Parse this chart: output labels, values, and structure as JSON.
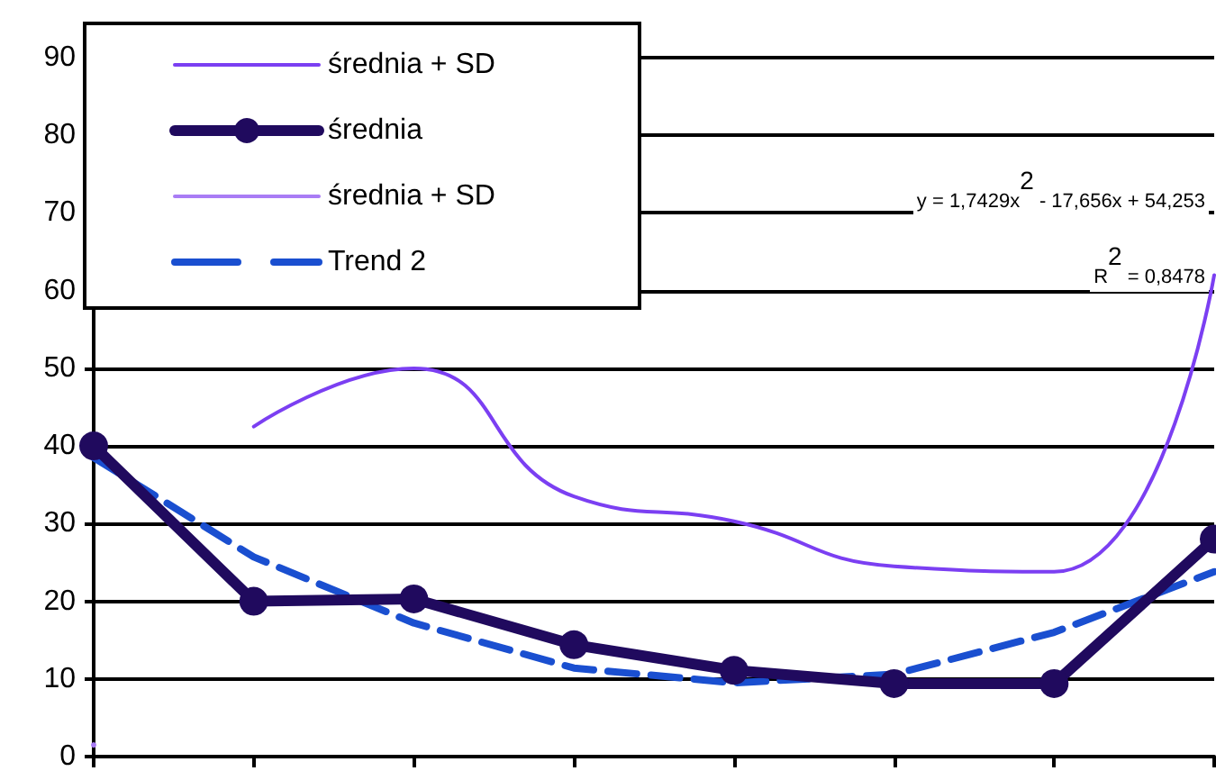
{
  "chart_data": {
    "type": "line",
    "categories": [
      null,
      null,
      null,
      null,
      null,
      null,
      null,
      null
    ],
    "series": [
      {
        "name": "średnia + SD",
        "color": "#7b3ff2",
        "values": [
          null,
          42.5,
          50,
          33.5,
          30.3,
          24.5,
          23.8,
          62
        ]
      },
      {
        "name": "średnia",
        "color": "#200a5e",
        "marker": "circle",
        "values": [
          40,
          20,
          20.3,
          14.4,
          11.1,
          9.4,
          9.4,
          28
        ]
      },
      {
        "name": "średnia + SD",
        "color": "#a97cf5",
        "values": [
          1.5,
          null,
          null,
          null,
          null,
          null,
          null,
          null
        ]
      },
      {
        "name": "Trend 2",
        "color": "#1a4fd0",
        "line_style": "dashed",
        "values": [
          38.5,
          25.7,
          17.2,
          11.4,
          9.5,
          10.6,
          16,
          23.8
        ]
      }
    ],
    "annotations": [
      "y = 1,7429x$^{2}$ - 17,656x + 54,253",
      "R$^{2}$ = 0,8478"
    ],
    "ylim": [
      0,
      90
    ],
    "yticks": [
      0,
      10,
      20,
      30,
      40,
      50,
      60,
      70,
      80,
      90
    ],
    "grid": "y",
    "legend": "top left",
    "tick_labels": "y",
    "marker": "none"
  }
}
